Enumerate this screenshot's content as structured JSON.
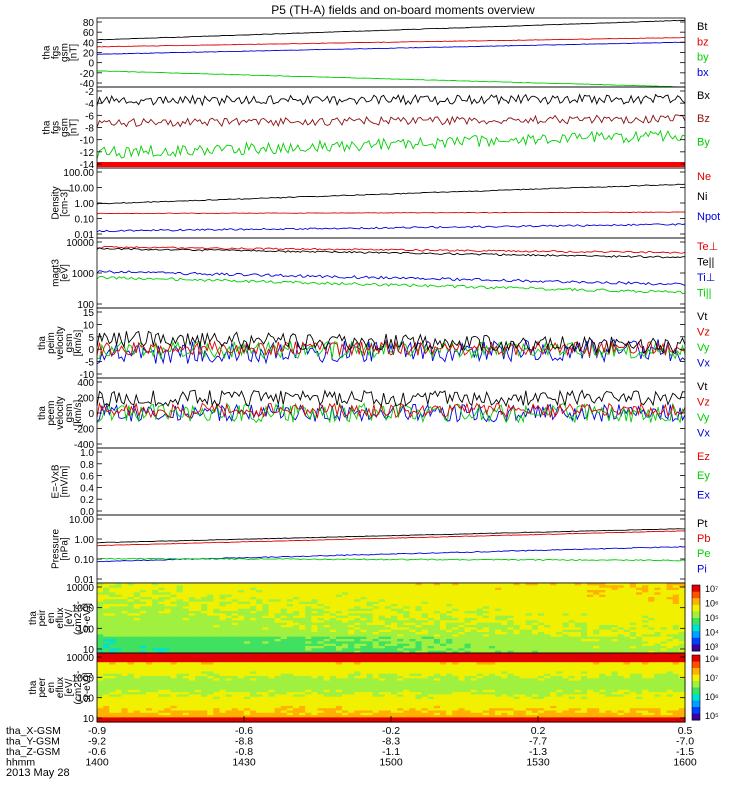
{
  "title": "P5 (TH-A) fields and on-board moments overview",
  "date_label": "2013 May 28",
  "colors": {
    "black": "#000000",
    "red": "#e00000",
    "green": "#00d000",
    "blue": "#0000e0",
    "brown": "#8b1010"
  },
  "chart_data": [
    {
      "type": "line",
      "ylabel": [
        "tha",
        "fgs",
        "gsm",
        "[nT]"
      ],
      "yticks": [
        "80",
        "60",
        "40",
        "20",
        "0",
        "-20",
        "-40"
      ],
      "ylim": [
        -40,
        80
      ],
      "log": false,
      "legend": [
        {
          "name": "Bt",
          "color": "#000000"
        },
        {
          "name": "bz",
          "color": "#e00000"
        },
        {
          "name": "by",
          "color": "#00d000"
        },
        {
          "name": "bx",
          "color": "#0000e0"
        }
      ],
      "series": [
        {
          "name": "Bt",
          "color": "#000000",
          "start": 42,
          "end": 76,
          "noise": 0.4
        },
        {
          "name": "bz",
          "color": "#e00000",
          "start": 30,
          "end": 46,
          "noise": 0.4
        },
        {
          "name": "bx",
          "color": "#0000e0",
          "start": 17,
          "end": 38,
          "noise": 0.4
        },
        {
          "name": "by",
          "color": "#00d000",
          "start": -12,
          "end": -40,
          "noise": 0.4
        }
      ]
    },
    {
      "type": "line",
      "ylabel": [
        "tha",
        "fgs",
        "gsm",
        "[nT]"
      ],
      "yticks": [
        "-2",
        "-4",
        "-6",
        "-8",
        "-10",
        "-12",
        "-14"
      ],
      "ylim": [
        -15,
        -1.5
      ],
      "log": false,
      "legend": [
        {
          "name": "Bx",
          "color": "#000000"
        },
        {
          "name": "Bz",
          "color": "#8b1010"
        },
        {
          "name": "By",
          "color": "#00d000"
        }
      ],
      "series": [
        {
          "name": "Bx",
          "color": "#000000",
          "start": -3.8,
          "end": -3.5,
          "noise": 0.8
        },
        {
          "name": "Bz",
          "color": "#8b1010",
          "start": -7.5,
          "end": -6.8,
          "noise": 0.7
        },
        {
          "name": "By",
          "color": "#00d000",
          "start": -12.5,
          "end": -9.5,
          "noise": 1.0
        }
      ],
      "band_color": "#ff0000"
    },
    {
      "type": "line",
      "ylabel": [
        "Density",
        "[cm-3]"
      ],
      "yticks": [
        "100.00",
        "10.00",
        "1.00",
        "0.10",
        "0.01"
      ],
      "ylim": [
        0.01,
        100
      ],
      "log": true,
      "legend": [
        {
          "name": "Ne",
          "color": "#e00000"
        },
        {
          "name": "Ni",
          "color": "#000000"
        },
        {
          "name": "Npot",
          "color": "#0000e0"
        }
      ],
      "series": [
        {
          "name": "Ni",
          "color": "#000000",
          "start": 0.9,
          "end": 12,
          "noise": 0.05
        },
        {
          "name": "Ne",
          "color": "#e00000",
          "start": 0.25,
          "end": 0.3,
          "noise": 0.03
        },
        {
          "name": "Npot",
          "color": "#0000e0",
          "start": 0.025,
          "end": 0.06,
          "noise": 0.1
        }
      ]
    },
    {
      "type": "line",
      "ylabel": [
        "magt3",
        "[eV]"
      ],
      "yticks": [
        "10000",
        "1000",
        "100"
      ],
      "ylim": [
        100,
        10000
      ],
      "log": true,
      "legend": [
        {
          "name": "Te⊥",
          "color": "#e00000"
        },
        {
          "name": "Te||",
          "color": "#000000"
        },
        {
          "name": "Ti⊥",
          "color": "#0000e0"
        },
        {
          "name": "Ti||",
          "color": "#00d000"
        }
      ],
      "series": [
        {
          "name": "Te⊥",
          "color": "#e00000",
          "start": 5500,
          "end": 3800,
          "noise": 0.05
        },
        {
          "name": "Te||",
          "color": "#000000",
          "start": 5000,
          "end": 2800,
          "noise": 0.05
        },
        {
          "name": "Ti⊥",
          "color": "#0000e0",
          "start": 1100,
          "end": 480,
          "noise": 0.08
        },
        {
          "name": "Ti||",
          "color": "#00d000",
          "start": 750,
          "end": 280,
          "noise": 0.08
        }
      ]
    },
    {
      "type": "line",
      "ylabel": [
        "tha",
        "peim",
        "velocity",
        "gsm",
        "[km/s]"
      ],
      "yticks": [
        "15",
        "10",
        "5",
        "0",
        "-5",
        "-10"
      ],
      "ylim": [
        -10,
        15
      ],
      "log": false,
      "legend": [
        {
          "name": "Vt",
          "color": "#000000"
        },
        {
          "name": "Vz",
          "color": "#e00000"
        },
        {
          "name": "Vy",
          "color": "#00d000"
        },
        {
          "name": "Vx",
          "color": "#0000e0"
        }
      ],
      "series": [
        {
          "name": "Vx",
          "color": "#0000e0",
          "start": -1,
          "end": 0,
          "noise": 4
        },
        {
          "name": "Vy",
          "color": "#00d000",
          "start": 0,
          "end": 0,
          "noise": 3
        },
        {
          "name": "Vz",
          "color": "#e00000",
          "start": 0.5,
          "end": 0.5,
          "noise": 2.5
        },
        {
          "name": "Vt",
          "color": "#000000",
          "start": 4,
          "end": 1.5,
          "noise": 3
        }
      ]
    },
    {
      "type": "line",
      "ylabel": [
        "tha",
        "peem",
        "velocity",
        "gsm",
        "[km/s]"
      ],
      "yticks": [
        "400",
        "200",
        "0",
        "-200",
        "-400"
      ],
      "ylim": [
        -400,
        400
      ],
      "log": false,
      "legend": [
        {
          "name": "Vt",
          "color": "#000000"
        },
        {
          "name": "Vz",
          "color": "#e00000"
        },
        {
          "name": "Vy",
          "color": "#00d000"
        },
        {
          "name": "Vx",
          "color": "#0000e0"
        }
      ],
      "series": [
        {
          "name": "Vx",
          "color": "#0000e0",
          "start": 0,
          "end": 0,
          "noise": 100
        },
        {
          "name": "Vy",
          "color": "#00d000",
          "start": 0,
          "end": 0,
          "noise": 110
        },
        {
          "name": "Vz",
          "color": "#e00000",
          "start": 30,
          "end": 30,
          "noise": 80
        },
        {
          "name": "Vt",
          "color": "#000000",
          "start": 170,
          "end": 170,
          "noise": 90
        }
      ]
    },
    {
      "type": "line",
      "ylabel": [
        "E=-VxB",
        "[mV/m]"
      ],
      "yticks": [
        "1.0",
        "0.8",
        "0.6",
        "0.4",
        "0.2",
        "0.0"
      ],
      "ylim": [
        0,
        1
      ],
      "log": false,
      "legend": [
        {
          "name": "Ez",
          "color": "#e00000"
        },
        {
          "name": "Ey",
          "color": "#00d000"
        },
        {
          "name": "Ex",
          "color": "#0000e0"
        }
      ],
      "series": []
    },
    {
      "type": "line",
      "ylabel": [
        "Pressure",
        "[nPa]"
      ],
      "yticks": [
        "10.00",
        "1.00",
        "0.10",
        "0.01"
      ],
      "ylim": [
        0.01,
        10
      ],
      "log": true,
      "legend": [
        {
          "name": "Pt",
          "color": "#000000"
        },
        {
          "name": "Pb",
          "color": "#e00000"
        },
        {
          "name": "Pe",
          "color": "#00d000"
        },
        {
          "name": "Pi",
          "color": "#0000e0"
        }
      ],
      "series": [
        {
          "name": "Pt",
          "color": "#000000",
          "start": 0.6,
          "end": 2.5,
          "noise": 0.02
        },
        {
          "name": "Pb",
          "color": "#e00000",
          "start": 0.45,
          "end": 2.0,
          "noise": 0.02
        },
        {
          "name": "Pi",
          "color": "#0000e0",
          "start": 0.09,
          "end": 0.4,
          "noise": 0.04
        },
        {
          "name": "Pe",
          "color": "#00d000",
          "start": 0.12,
          "end": 0.1,
          "noise": 0.05
        }
      ]
    },
    {
      "type": "heatmap",
      "ylabel": [
        "tha",
        "peir",
        "en",
        "eflux",
        "[eV/",
        "(cm2-s-",
        "sr-eV)]"
      ],
      "yticks": [
        "10000",
        "1000",
        "100",
        "10"
      ],
      "ylim": [
        10,
        20000
      ],
      "log": true,
      "colorbar_ticks": [
        "10⁷",
        "10⁶",
        "10⁵",
        "10⁴",
        "10³"
      ],
      "variant": "ion"
    },
    {
      "type": "heatmap",
      "ylabel": [
        "tha",
        "peer",
        "en",
        "eflux",
        "[eV/",
        "(cm2-s-",
        "sr-eV)]"
      ],
      "yticks": [
        "10000",
        "1000",
        "100",
        "10"
      ],
      "ylim": [
        10,
        20000
      ],
      "log": true,
      "colorbar_ticks": [
        "10⁸",
        "10⁷",
        "10⁶",
        "10⁵"
      ],
      "variant": "electron"
    }
  ],
  "xaxis": {
    "rows": [
      {
        "label": "tha_X-GSM",
        "values": [
          "-0.9",
          "-0.6",
          "-0.2",
          "0.2",
          "0.5"
        ]
      },
      {
        "label": "tha_Y-GSM",
        "values": [
          "-9.2",
          "-8.8",
          "-8.3",
          "-7.7",
          "-7.0"
        ]
      },
      {
        "label": "tha_Z-GSM",
        "values": [
          "-0.6",
          "-0.8",
          "-1.1",
          "-1.3",
          "-1.5"
        ]
      },
      {
        "label": "hhmm",
        "values": [
          "1400",
          "1430",
          "1500",
          "1530",
          "1600"
        ]
      }
    ]
  }
}
